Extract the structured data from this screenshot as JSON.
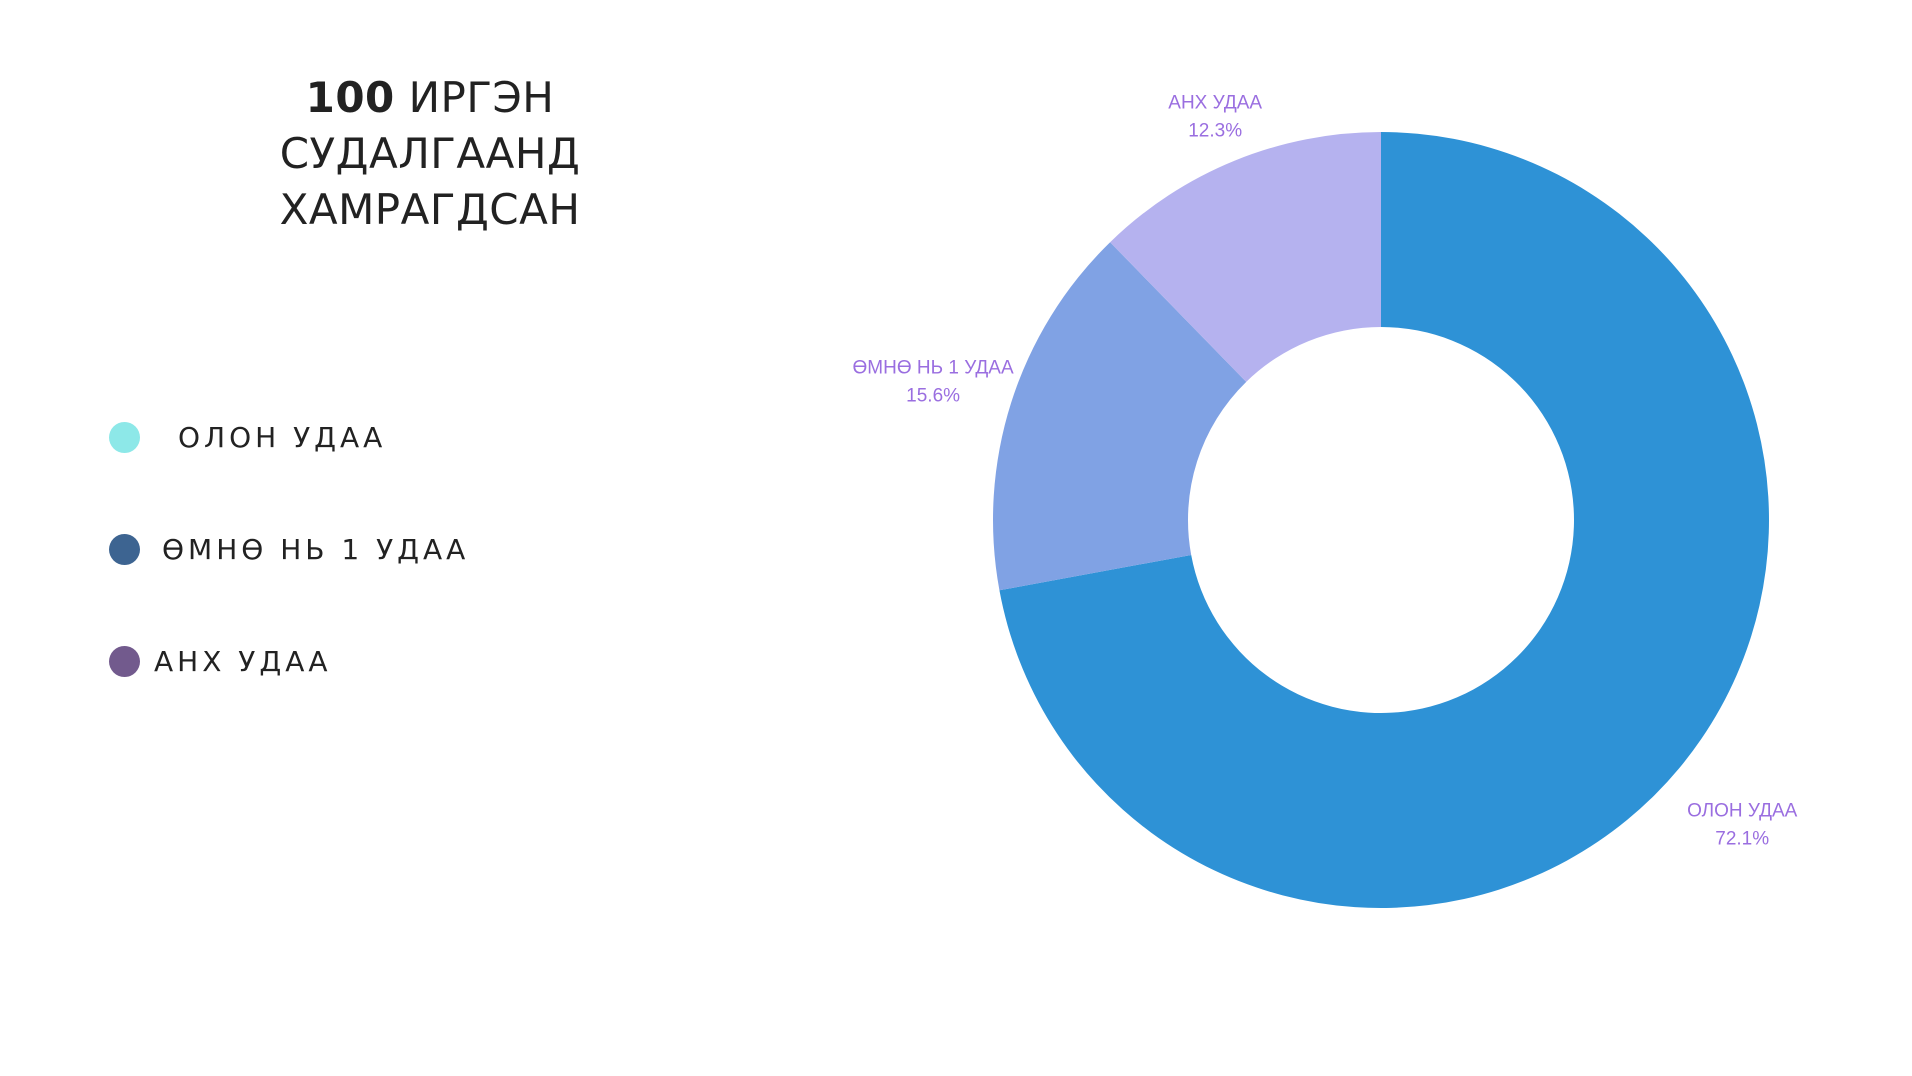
{
  "title": {
    "number": "100",
    "line1_rest": "ИРГЭН СУДАЛГААНД",
    "line2": "ХАМРАГДСАН"
  },
  "legend": [
    {
      "label": "ОЛОН УДАА",
      "color": "#8de8e8"
    },
    {
      "label": "ӨМНӨ НЬ 1 УДАА",
      "color": "#3d6491"
    },
    {
      "label": "АНХ УДАА",
      "color": "#725a8d"
    }
  ],
  "chart_data": {
    "type": "pie",
    "style": "donut",
    "title": "",
    "categories": [
      "ОЛОН УДАА",
      "ӨМНӨ НЬ 1 УДАА",
      "АНХ УДАА"
    ],
    "values": [
      72.1,
      15.6,
      12.3
    ],
    "value_labels": [
      "72.1%",
      "15.6%",
      "12.3%"
    ],
    "colors": [
      "#2e92d6",
      "#80a2e4",
      "#b5b2ef"
    ],
    "label_color": "#9a6ee0",
    "start_angle": "12 o'clock",
    "direction": "clockwise"
  }
}
